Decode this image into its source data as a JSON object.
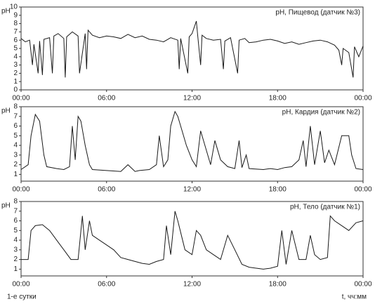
{
  "chart_data": [
    {
      "type": "line",
      "ylabel": "pH",
      "legend": "upper right",
      "x": [
        0,
        0.3,
        0.6,
        0.8,
        0.9,
        1.2,
        1.3,
        1.5,
        1.6,
        2,
        2.2,
        2.3,
        2.6,
        3,
        3.1,
        3.2,
        3.6,
        4,
        4.1,
        4.5,
        4.6,
        4.7,
        5,
        5.5,
        6,
        6.5,
        7,
        7.5,
        8,
        8.5,
        9,
        9.5,
        10,
        10.5,
        11,
        11.1,
        11.2,
        11.7,
        11.8,
        12,
        12.3,
        12.4,
        12.6,
        12.7,
        13,
        13.5,
        14,
        14.2,
        14.3,
        14.7,
        15.2,
        15.3,
        15.7,
        16,
        16.5,
        17,
        17.5,
        18,
        18.5,
        19,
        19.5,
        20,
        20.5,
        21,
        21.5,
        22,
        22.3,
        22.5,
        22.6,
        23,
        23.3,
        23.4,
        23.7,
        24
      ],
      "series": [
        {
          "name": "pH, Пищевод (датчик №3)",
          "color": "#1a1a1a",
          "values": [
            6.2,
            5.8,
            6,
            3,
            5.5,
            2,
            5.9,
            1.8,
            6.1,
            6.3,
            2,
            6.5,
            6.8,
            6.2,
            1.5,
            6.4,
            7,
            6.5,
            2,
            6.8,
            2.5,
            7.2,
            6.6,
            6.3,
            6.5,
            6.4,
            6.2,
            6.7,
            6.3,
            6.5,
            6.1,
            6,
            5.8,
            6.3,
            6,
            2.5,
            6.2,
            2,
            6.4,
            6.8,
            8.3,
            6.5,
            3,
            6.6,
            6.2,
            6,
            6.1,
            2.5,
            5.9,
            6.3,
            2,
            6,
            6.2,
            5.7,
            5.8,
            6,
            6.1,
            5.9,
            5.6,
            5.8,
            5.5,
            5.7,
            5.9,
            6,
            5.8,
            5.4,
            4.8,
            3,
            5,
            4.5,
            1.5,
            5.2,
            4,
            5.3
          ]
        }
      ],
      "xlim": [
        0,
        24
      ],
      "xticks": [
        {
          "value": 0,
          "label": "00:00"
        },
        {
          "value": 6,
          "label": "06:00"
        },
        {
          "value": 12,
          "label": "12:00"
        },
        {
          "value": 18,
          "label": "18:00"
        },
        {
          "value": 24,
          "label": "00:00"
        }
      ],
      "ylim": [
        0,
        10
      ],
      "yticks": [
        0,
        1,
        2,
        3,
        4,
        5,
        6,
        7,
        8,
        9,
        10
      ]
    },
    {
      "type": "line",
      "ylabel": "pH",
      "legend": "upper right",
      "x": [
        0,
        0.5,
        0.7,
        1,
        1.3,
        1.6,
        1.8,
        2.5,
        3,
        3.4,
        3.6,
        3.8,
        4,
        4.2,
        4.5,
        4.8,
        5,
        6,
        7,
        7.5,
        8,
        8.3,
        9,
        9.5,
        9.7,
        10,
        10.3,
        10.5,
        10.8,
        11,
        11.3,
        11.6,
        12,
        12.3,
        12.6,
        13,
        13.3,
        13.6,
        14,
        14.5,
        15,
        15.3,
        15.5,
        15.8,
        16,
        17,
        17.5,
        18,
        18.5,
        19,
        19.5,
        19.8,
        20,
        20.3,
        20.6,
        21,
        21.3,
        21.6,
        22,
        22.5,
        23,
        23.2,
        23.5,
        24
      ],
      "series": [
        {
          "name": "pH, Кардия (датчик №2)",
          "color": "#1a1a1a",
          "values": [
            1.5,
            2,
            5,
            7.2,
            6.5,
            3,
            1.8,
            1.6,
            1.5,
            1.8,
            6,
            2.5,
            7,
            6.5,
            4,
            2,
            1.5,
            1.4,
            1.3,
            2,
            1.3,
            1.4,
            1.5,
            2,
            5,
            1.8,
            2.5,
            6,
            7.5,
            7,
            5.5,
            4,
            2.5,
            1.8,
            5.5,
            3.5,
            2,
            4.5,
            2.5,
            1.8,
            1.6,
            4.5,
            1.7,
            3,
            1.6,
            1.5,
            1.6,
            1.5,
            1.7,
            1.8,
            2.5,
            4.5,
            1.8,
            6,
            2,
            5.5,
            2.2,
            3.5,
            2,
            5,
            5,
            3,
            1.6,
            1.5
          ]
        }
      ],
      "xlim": [
        0,
        24
      ],
      "xticks": [
        {
          "value": 0,
          "label": "00:00"
        },
        {
          "value": 6,
          "label": "06:00"
        },
        {
          "value": 12,
          "label": "12:00"
        },
        {
          "value": 18,
          "label": "18:00"
        },
        {
          "value": 24,
          "label": "00:00"
        }
      ],
      "ylim": [
        0.3,
        8
      ],
      "yticks": [
        1,
        2,
        3,
        4,
        5,
        6,
        7,
        8
      ]
    },
    {
      "type": "line",
      "ylabel": "pH",
      "legend": "upper right",
      "note": "1-е сутки",
      "xlabel": "t, чч:мм",
      "x": [
        0,
        0.5,
        0.7,
        1,
        1.5,
        2,
        2.5,
        3,
        3.5,
        4,
        4.3,
        4.5,
        4.8,
        5,
        5.5,
        6,
        6.5,
        7,
        7.5,
        8,
        8.5,
        9,
        9.5,
        10,
        10.2,
        10.5,
        10.8,
        11,
        11.5,
        12,
        12.3,
        12.6,
        13,
        13.5,
        14,
        14.5,
        15,
        15.5,
        16,
        17,
        17.5,
        18,
        18.3,
        18.6,
        19,
        19.5,
        20,
        20.3,
        20.6,
        21,
        21.5,
        21.7,
        22,
        22.5,
        23,
        23.5,
        24
      ],
      "series": [
        {
          "name": "pH, Тело (датчик №1)",
          "color": "#1a1a1a",
          "values": [
            2,
            2,
            5,
            5.5,
            5.6,
            5,
            4,
            3,
            2,
            2,
            6.5,
            3,
            6,
            4.5,
            4,
            3.5,
            3,
            2.2,
            2,
            1.8,
            1.6,
            1.5,
            1.8,
            2,
            5.5,
            2.5,
            7,
            6,
            3,
            2.5,
            5,
            4.5,
            3,
            2.5,
            2,
            4.5,
            3,
            1.5,
            1.2,
            1,
            1.1,
            1.3,
            5,
            1.5,
            5,
            2,
            2,
            4.5,
            2.5,
            2,
            2.2,
            6.5,
            6,
            5.5,
            5,
            5.8,
            6
          ]
        }
      ],
      "xlim": [
        0,
        24
      ],
      "xticks": [
        {
          "value": 0,
          "label": "00:00"
        },
        {
          "value": 6,
          "label": "06:00"
        },
        {
          "value": 12,
          "label": "12:00"
        },
        {
          "value": 18,
          "label": "18:00"
        },
        {
          "value": 24,
          "label": "00:00"
        }
      ],
      "ylim": [
        0.3,
        8
      ],
      "yticks": [
        1,
        2,
        3,
        4,
        5,
        6,
        7,
        8
      ]
    }
  ]
}
